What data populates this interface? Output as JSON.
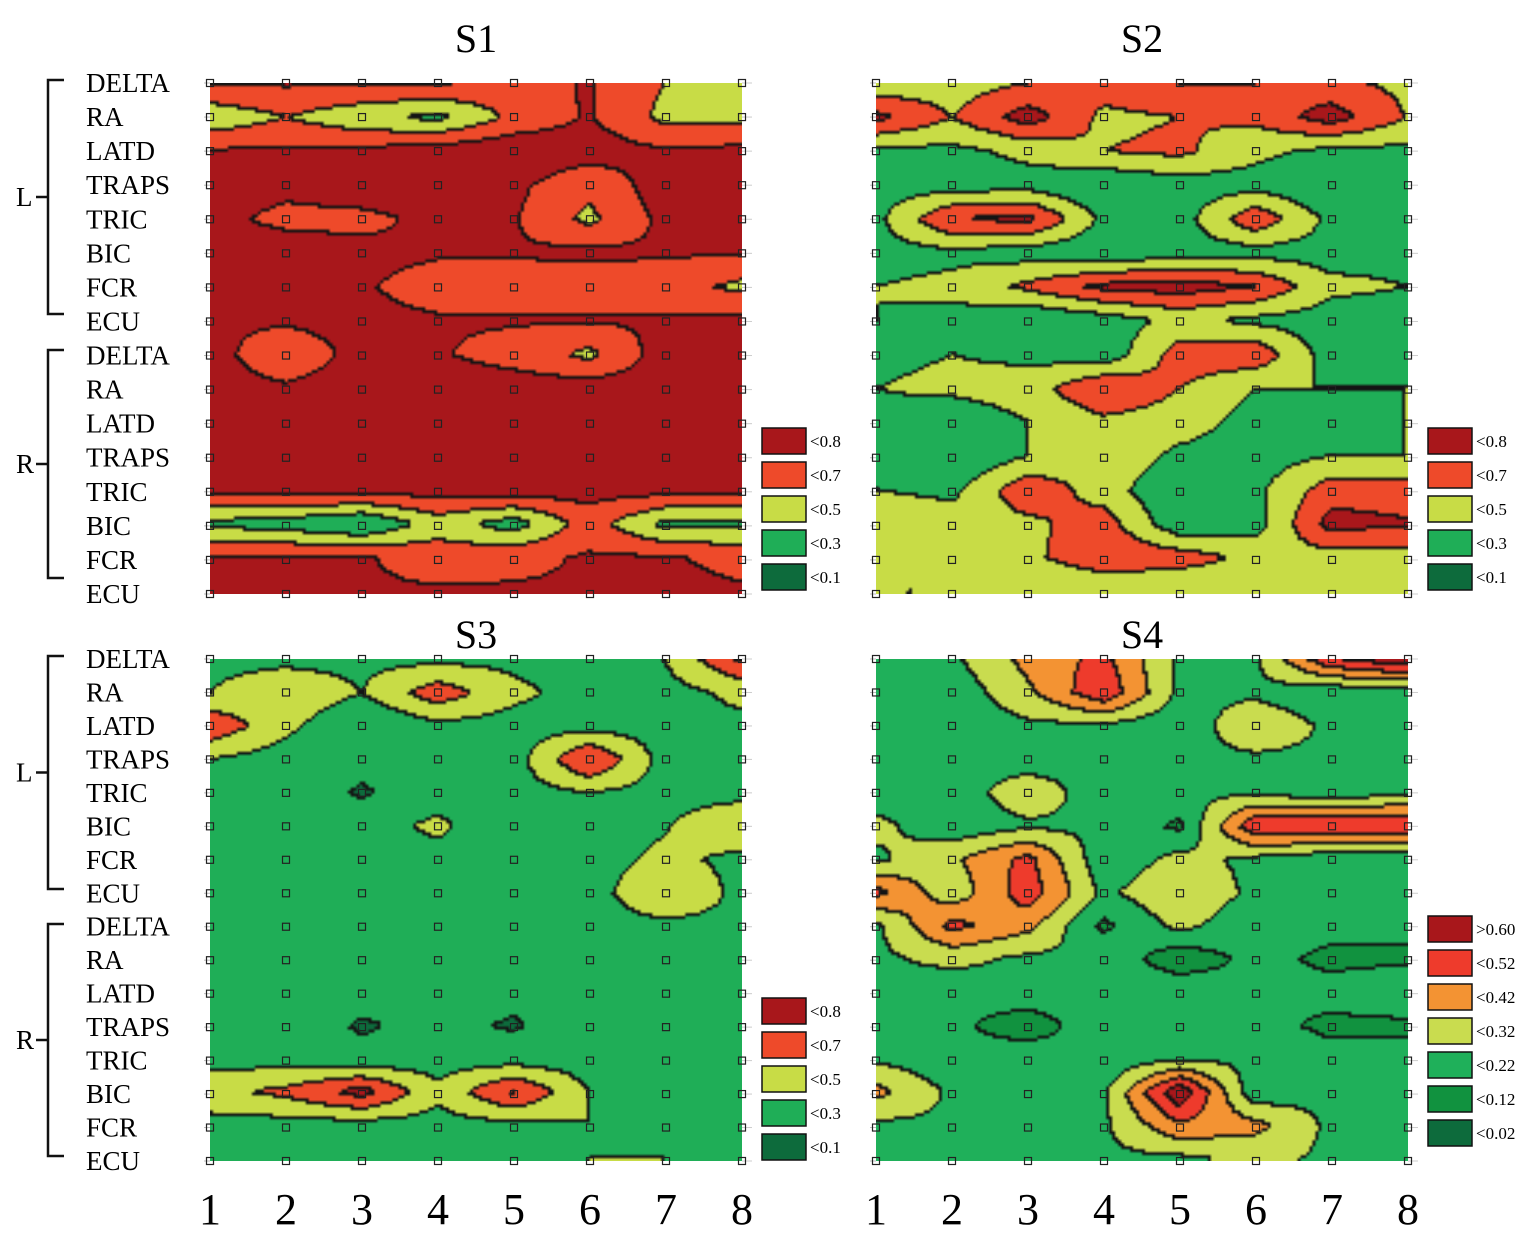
{
  "figure": {
    "row_labels": [
      "DELTA",
      "RA",
      "LATD",
      "TRAPS",
      "TRIC",
      "BIC",
      "FCR",
      "ECU",
      "DELTA",
      "RA",
      "LATD",
      "TRAPS",
      "TRIC",
      "BIC",
      "FCR",
      "ECU"
    ],
    "group_labels": [
      "L",
      "R"
    ],
    "x_ticks": [
      "1",
      "2",
      "3",
      "4",
      "5",
      "6",
      "7",
      "8"
    ]
  },
  "chart_data": [
    {
      "type": "heatmap",
      "title": "S1",
      "x": [
        1,
        2,
        3,
        4,
        5,
        6,
        7,
        8
      ],
      "legend": [
        {
          "label": "<0.8",
          "color": "#a8171b"
        },
        {
          "label": "<0.7",
          "color": "#ee4a2a"
        },
        {
          "label": "<0.5",
          "color": "#c8dc46"
        },
        {
          "label": "<0.3",
          "color": "#1fae57"
        },
        {
          "label": "<0.1",
          "color": "#0d6b3c"
        }
      ],
      "z": [
        [
          0.72,
          0.72,
          0.72,
          0.72,
          0.6,
          0.72,
          0.5,
          0.4
        ],
        [
          0.35,
          0.5,
          0.35,
          0.25,
          0.55,
          0.72,
          0.45,
          0.45
        ],
        [
          0.72,
          0.72,
          0.75,
          0.8,
          0.85,
          0.8,
          0.72,
          0.75
        ],
        [
          0.8,
          0.75,
          0.82,
          0.8,
          0.75,
          0.55,
          0.8,
          0.85
        ],
        [
          0.75,
          0.65,
          0.65,
          0.75,
          0.72,
          0.45,
          0.75,
          0.8
        ],
        [
          0.78,
          0.8,
          0.75,
          0.72,
          0.72,
          0.75,
          0.72,
          0.72
        ],
        [
          0.72,
          0.8,
          0.72,
          0.62,
          0.6,
          0.55,
          0.6,
          0.45
        ],
        [
          0.72,
          0.72,
          0.75,
          0.72,
          0.72,
          0.72,
          0.72,
          0.75
        ],
        [
          0.75,
          0.6,
          0.75,
          0.72,
          0.62,
          0.45,
          0.8,
          0.82
        ],
        [
          0.75,
          0.72,
          0.78,
          0.8,
          0.8,
          0.8,
          0.8,
          0.82
        ],
        [
          0.8,
          0.78,
          0.8,
          0.82,
          0.8,
          0.82,
          0.82,
          0.82
        ],
        [
          0.8,
          0.82,
          0.85,
          0.82,
          0.8,
          0.82,
          0.82,
          0.8
        ],
        [
          0.78,
          0.8,
          0.8,
          0.78,
          0.82,
          0.78,
          0.78,
          0.78
        ],
        [
          0.25,
          0.2,
          0.08,
          0.4,
          0.2,
          0.6,
          0.25,
          0.25
        ],
        [
          0.72,
          0.72,
          0.72,
          0.62,
          0.65,
          0.72,
          0.72,
          0.65
        ],
        [
          0.72,
          0.75,
          0.72,
          0.72,
          0.72,
          0.72,
          0.75,
          0.72
        ]
      ]
    },
    {
      "type": "heatmap",
      "title": "S2",
      "x": [
        1,
        2,
        3,
        4,
        5,
        6,
        7,
        8
      ],
      "legend": [
        {
          "label": "<0.8",
          "color": "#a8171b"
        },
        {
          "label": "<0.7",
          "color": "#ee4a2a"
        },
        {
          "label": "<0.5",
          "color": "#c8dc46"
        },
        {
          "label": "<0.3",
          "color": "#1fae57"
        },
        {
          "label": "<0.1",
          "color": "#0d6b3c"
        }
      ],
      "z": [
        [
          0.35,
          0.4,
          0.5,
          0.6,
          0.7,
          0.7,
          0.55,
          0.45
        ],
        [
          0.75,
          0.5,
          0.8,
          0.45,
          0.5,
          0.55,
          0.8,
          0.5
        ],
        [
          0.25,
          0.25,
          0.35,
          0.5,
          0.55,
          0.35,
          0.25,
          0.25
        ],
        [
          0.22,
          0.2,
          0.22,
          0.12,
          0.2,
          0.22,
          0.12,
          0.22
        ],
        [
          0.25,
          0.7,
          0.75,
          0.25,
          0.2,
          0.65,
          0.25,
          0.22
        ],
        [
          0.22,
          0.25,
          0.2,
          0.15,
          0.2,
          0.22,
          0.22,
          0.25
        ],
        [
          0.3,
          0.35,
          0.55,
          0.75,
          0.8,
          0.7,
          0.35,
          0.3
        ],
        [
          0.3,
          0.25,
          0.1,
          0.2,
          0.35,
          0.25,
          0.2,
          0.2
        ],
        [
          0.25,
          0.3,
          0.25,
          0.15,
          0.6,
          0.65,
          0.2,
          0.22
        ],
        [
          0.3,
          0.35,
          0.4,
          0.7,
          0.5,
          0.3,
          0.3,
          0.3
        ],
        [
          0.25,
          0.15,
          0.3,
          0.45,
          0.4,
          0.22,
          0.25,
          0.3
        ],
        [
          0.25,
          0.1,
          0.3,
          0.45,
          0.25,
          0.2,
          0.3,
          0.3
        ],
        [
          0.3,
          0.25,
          0.65,
          0.4,
          0.12,
          0.25,
          0.6,
          0.6
        ],
        [
          0.45,
          0.4,
          0.45,
          0.6,
          0.15,
          0.2,
          0.78,
          0.72
        ],
        [
          0.35,
          0.4,
          0.45,
          0.65,
          0.6,
          0.45,
          0.4,
          0.4
        ],
        [
          0.3,
          0.3,
          0.3,
          0.3,
          0.3,
          0.3,
          0.3,
          0.3
        ]
      ]
    },
    {
      "type": "heatmap",
      "title": "S3",
      "x": [
        1,
        2,
        3,
        4,
        5,
        6,
        7,
        8
      ],
      "legend": [
        {
          "label": "<0.8",
          "color": "#a8171b"
        },
        {
          "label": "<0.7",
          "color": "#ee4a2a"
        },
        {
          "label": "<0.5",
          "color": "#c8dc46"
        },
        {
          "label": "<0.3",
          "color": "#1fae57"
        },
        {
          "label": "<0.1",
          "color": "#0d6b3c"
        }
      ],
      "z": [
        [
          0.25,
          0.25,
          0.25,
          0.25,
          0.25,
          0.22,
          0.3,
          0.72
        ],
        [
          0.3,
          0.45,
          0.3,
          0.62,
          0.35,
          0.22,
          0.22,
          0.35
        ],
        [
          0.65,
          0.35,
          0.1,
          0.25,
          0.22,
          0.22,
          0.22,
          0.25
        ],
        [
          0.3,
          0.2,
          0.15,
          0.22,
          0.2,
          0.72,
          0.22,
          0.22
        ],
        [
          0.22,
          0.2,
          0.08,
          0.2,
          0.22,
          0.3,
          0.22,
          0.22
        ],
        [
          0.22,
          0.22,
          0.2,
          0.35,
          0.1,
          0.2,
          0.28,
          0.5
        ],
        [
          0.22,
          0.18,
          0.12,
          0.22,
          0.2,
          0.2,
          0.35,
          0.25
        ],
        [
          0.22,
          0.2,
          0.2,
          0.22,
          0.2,
          0.2,
          0.5,
          0.25
        ],
        [
          0.22,
          0.2,
          0.1,
          0.2,
          0.2,
          0.22,
          0.25,
          0.25
        ],
        [
          0.22,
          0.28,
          0.2,
          0.2,
          0.2,
          0.22,
          0.2,
          0.2
        ],
        [
          0.12,
          0.2,
          0.18,
          0.2,
          0.15,
          0.2,
          0.2,
          0.2
        ],
        [
          0.22,
          0.2,
          0.08,
          0.15,
          0.08,
          0.2,
          0.2,
          0.2
        ],
        [
          0.22,
          0.2,
          0.15,
          0.2,
          0.2,
          0.2,
          0.2,
          0.25
        ],
        [
          0.45,
          0.55,
          0.78,
          0.35,
          0.72,
          0.3,
          0.12,
          0.3
        ],
        [
          0.22,
          0.22,
          0.22,
          0.22,
          0.25,
          0.3,
          0.25,
          0.25
        ],
        [
          0.22,
          0.25,
          0.25,
          0.22,
          0.25,
          0.3,
          0.3,
          0.25
        ]
      ]
    },
    {
      "type": "heatmap",
      "title": "S4",
      "x": [
        1,
        2,
        3,
        4,
        5,
        6,
        7,
        8
      ],
      "legend": [
        {
          "label": ">0.60",
          "color": "#a8171b"
        },
        {
          "label": "<0.52",
          "color": "#ee3b2c"
        },
        {
          "label": "<0.42",
          "color": "#f39333"
        },
        {
          "label": "<0.32",
          "color": "#c9dc4f"
        },
        {
          "label": "<0.22",
          "color": "#1fb05a"
        },
        {
          "label": "<0.12",
          "color": "#11923f"
        },
        {
          "label": "<0.02",
          "color": "#0d6b3c"
        }
      ],
      "z": [
        [
          0.2,
          0.2,
          0.35,
          0.45,
          0.2,
          0.2,
          0.5,
          0.6
        ],
        [
          0.2,
          0.15,
          0.3,
          0.5,
          0.2,
          0.2,
          0.15,
          0.15
        ],
        [
          0.2,
          0.15,
          0.2,
          0.2,
          0.15,
          0.3,
          0.2,
          0.2
        ],
        [
          0.2,
          0.2,
          0.15,
          0.2,
          0.2,
          0.2,
          0.2,
          0.2
        ],
        [
          0.15,
          0.15,
          0.3,
          0.15,
          0.2,
          0.2,
          0.15,
          0.2
        ],
        [
          0.25,
          0.15,
          0.2,
          0.2,
          0.1,
          0.5,
          0.52,
          0.52
        ],
        [
          0.2,
          0.3,
          0.45,
          0.15,
          0.25,
          0.2,
          0.15,
          0.15
        ],
        [
          0.45,
          0.25,
          0.48,
          0.2,
          0.3,
          0.2,
          0.2,
          0.2
        ],
        [
          0.2,
          0.45,
          0.35,
          0.1,
          0.25,
          0.15,
          0.15,
          0.15
        ],
        [
          0.2,
          0.25,
          0.2,
          0.2,
          0.05,
          0.15,
          0.1,
          0.1
        ],
        [
          0.2,
          0.15,
          0.2,
          0.2,
          0.2,
          0.15,
          0.15,
          0.2
        ],
        [
          0.2,
          0.15,
          0.05,
          0.2,
          0.2,
          0.15,
          0.1,
          0.1
        ],
        [
          0.2,
          0.15,
          0.2,
          0.15,
          0.2,
          0.2,
          0.15,
          0.15
        ],
        [
          0.35,
          0.2,
          0.2,
          0.2,
          0.6,
          0.15,
          0.2,
          0.2
        ],
        [
          0.2,
          0.2,
          0.2,
          0.2,
          0.4,
          0.35,
          0.2,
          0.2
        ],
        [
          0.2,
          0.2,
          0.2,
          0.2,
          0.2,
          0.25,
          0.2,
          0.2
        ]
      ]
    }
  ]
}
